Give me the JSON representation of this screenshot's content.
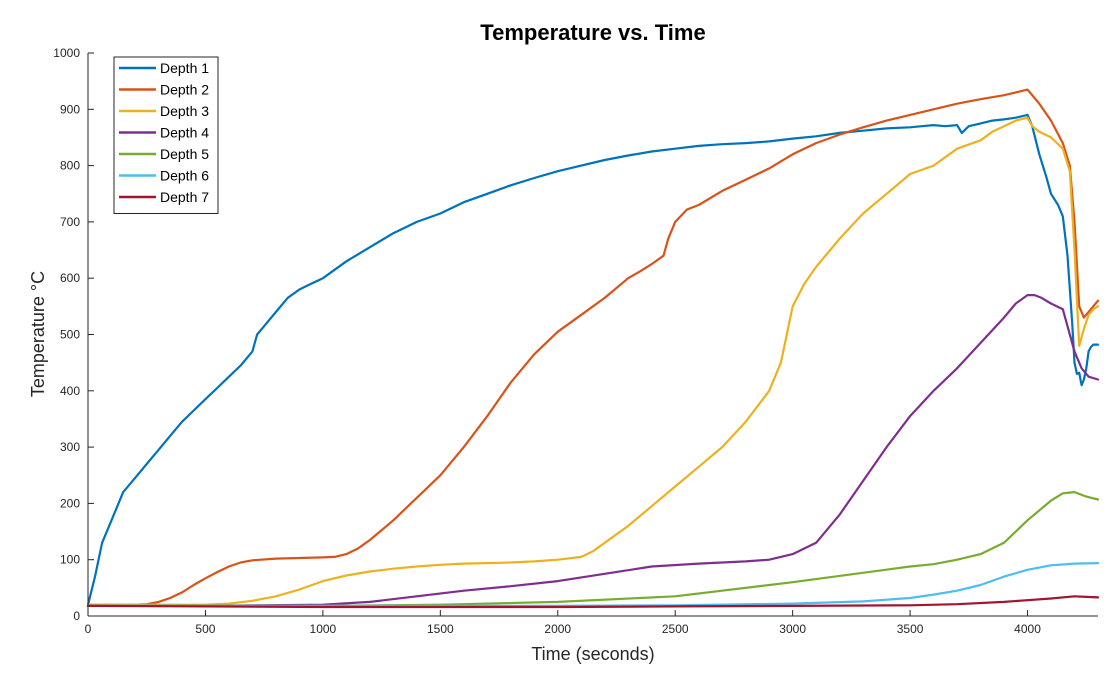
{
  "chart_data": {
    "type": "line",
    "title": "Temperature vs. Time",
    "xlabel": "Time (seconds)",
    "ylabel": "Temperature °C",
    "xlim": [
      0,
      4300
    ],
    "ylim": [
      0,
      1000
    ],
    "xticks": [
      0,
      500,
      1000,
      1500,
      2000,
      2500,
      3000,
      3500,
      4000
    ],
    "yticks": [
      0,
      100,
      200,
      300,
      400,
      500,
      600,
      700,
      800,
      900,
      1000
    ],
    "grid": false,
    "legend_position": "top-left",
    "series": [
      {
        "name": "Depth 1",
        "color": "#0072BD",
        "x": [
          0,
          30,
          60,
          100,
          150,
          200,
          250,
          300,
          350,
          400,
          450,
          500,
          550,
          600,
          650,
          700,
          720,
          750,
          800,
          850,
          900,
          950,
          1000,
          1100,
          1200,
          1300,
          1400,
          1500,
          1600,
          1700,
          1800,
          1900,
          2000,
          2100,
          2200,
          2300,
          2400,
          2500,
          2600,
          2700,
          2800,
          2900,
          3000,
          3100,
          3200,
          3300,
          3400,
          3500,
          3550,
          3600,
          3650,
          3700,
          3720,
          3750,
          3800,
          3850,
          3900,
          3950,
          4000,
          4020,
          4050,
          4080,
          4100,
          4130,
          4150,
          4170,
          4190,
          4200,
          4210,
          4220,
          4230,
          4240,
          4250,
          4260,
          4270,
          4280,
          4300
        ],
        "y": [
          20,
          70,
          130,
          170,
          220,
          245,
          270,
          295,
          320,
          345,
          365,
          385,
          405,
          425,
          445,
          470,
          500,
          515,
          540,
          565,
          580,
          590,
          600,
          630,
          655,
          680,
          700,
          715,
          735,
          750,
          765,
          778,
          790,
          800,
          810,
          818,
          825,
          830,
          835,
          838,
          840,
          843,
          848,
          852,
          858,
          862,
          866,
          868,
          870,
          872,
          870,
          872,
          858,
          870,
          875,
          880,
          882,
          885,
          890,
          870,
          820,
          780,
          750,
          730,
          710,
          640,
          520,
          450,
          430,
          432,
          410,
          420,
          440,
          470,
          478,
          482,
          482
        ]
      },
      {
        "name": "Depth 2",
        "color": "#D95319",
        "x": [
          0,
          100,
          200,
          250,
          300,
          350,
          400,
          450,
          500,
          550,
          600,
          650,
          700,
          800,
          900,
          1000,
          1050,
          1100,
          1150,
          1200,
          1300,
          1400,
          1500,
          1600,
          1700,
          1800,
          1900,
          2000,
          2100,
          2200,
          2300,
          2350,
          2400,
          2450,
          2470,
          2500,
          2550,
          2600,
          2700,
          2800,
          2900,
          3000,
          3100,
          3200,
          3300,
          3400,
          3500,
          3600,
          3700,
          3800,
          3900,
          3950,
          4000,
          4050,
          4100,
          4150,
          4180,
          4200,
          4220,
          4240,
          4260,
          4280,
          4300
        ],
        "y": [
          20,
          20,
          20,
          21,
          25,
          32,
          42,
          55,
          67,
          78,
          88,
          95,
          99,
          102,
          103,
          104,
          105,
          110,
          120,
          135,
          170,
          210,
          250,
          300,
          355,
          415,
          465,
          505,
          535,
          565,
          600,
          612,
          625,
          640,
          670,
          700,
          722,
          730,
          755,
          775,
          795,
          820,
          840,
          855,
          868,
          880,
          890,
          900,
          910,
          918,
          925,
          930,
          935,
          910,
          880,
          840,
          800,
          700,
          550,
          530,
          540,
          550,
          560
        ]
      },
      {
        "name": "Depth 3",
        "color": "#EDB120",
        "x": [
          0,
          200,
          400,
          500,
          600,
          700,
          800,
          900,
          1000,
          1100,
          1200,
          1300,
          1400,
          1500,
          1600,
          1700,
          1800,
          1900,
          2000,
          2100,
          2150,
          2200,
          2300,
          2400,
          2500,
          2600,
          2700,
          2800,
          2900,
          2950,
          3000,
          3050,
          3100,
          3200,
          3300,
          3400,
          3500,
          3600,
          3700,
          3800,
          3850,
          3900,
          3950,
          4000,
          4020,
          4050,
          4100,
          4150,
          4180,
          4200,
          4220,
          4240,
          4260,
          4280,
          4300
        ],
        "y": [
          20,
          20,
          20,
          20,
          22,
          27,
          35,
          47,
          62,
          72,
          79,
          84,
          88,
          91,
          93,
          94,
          95,
          97,
          100,
          105,
          115,
          130,
          160,
          195,
          230,
          265,
          300,
          345,
          400,
          450,
          550,
          590,
          620,
          670,
          715,
          750,
          785,
          800,
          830,
          845,
          860,
          870,
          880,
          885,
          870,
          860,
          850,
          830,
          790,
          650,
          480,
          510,
          535,
          545,
          550
        ]
      },
      {
        "name": "Depth 4",
        "color": "#7E2F8E",
        "x": [
          0,
          500,
          1000,
          1200,
          1400,
          1600,
          1800,
          2000,
          2200,
          2400,
          2600,
          2800,
          2900,
          3000,
          3100,
          3200,
          3300,
          3400,
          3500,
          3600,
          3700,
          3800,
          3900,
          3950,
          4000,
          4030,
          4060,
          4100,
          4150,
          4200,
          4230,
          4260,
          4300
        ],
        "y": [
          18,
          18,
          20,
          25,
          35,
          45,
          53,
          62,
          75,
          88,
          93,
          97,
          100,
          110,
          130,
          180,
          240,
          300,
          355,
          400,
          440,
          485,
          530,
          555,
          570,
          570,
          565,
          555,
          545,
          470,
          440,
          425,
          420
        ]
      },
      {
        "name": "Depth 5",
        "color": "#77AC30",
        "x": [
          0,
          1000,
          1500,
          2000,
          2500,
          3000,
          3500,
          3600,
          3700,
          3800,
          3900,
          4000,
          4100,
          4150,
          4200,
          4250,
          4300
        ],
        "y": [
          18,
          18,
          20,
          25,
          35,
          60,
          88,
          92,
          100,
          110,
          130,
          170,
          205,
          218,
          220,
          212,
          207
        ]
      },
      {
        "name": "Depth 6",
        "color": "#4DBEEE",
        "x": [
          0,
          1000,
          2000,
          2500,
          3000,
          3300,
          3500,
          3600,
          3700,
          3800,
          3900,
          4000,
          4100,
          4200,
          4300
        ],
        "y": [
          18,
          18,
          18,
          19,
          22,
          26,
          32,
          38,
          45,
          55,
          70,
          82,
          90,
          93,
          94
        ]
      },
      {
        "name": "Depth 7",
        "color": "#A2142F",
        "x": [
          0,
          500,
          1000,
          1500,
          2000,
          2500,
          3000,
          3500,
          3700,
          3900,
          4000,
          4100,
          4200,
          4250,
          4300
        ],
        "y": [
          18,
          17,
          16,
          16,
          16,
          17,
          18,
          19,
          21,
          25,
          28,
          31,
          35,
          34,
          33
        ]
      }
    ]
  }
}
